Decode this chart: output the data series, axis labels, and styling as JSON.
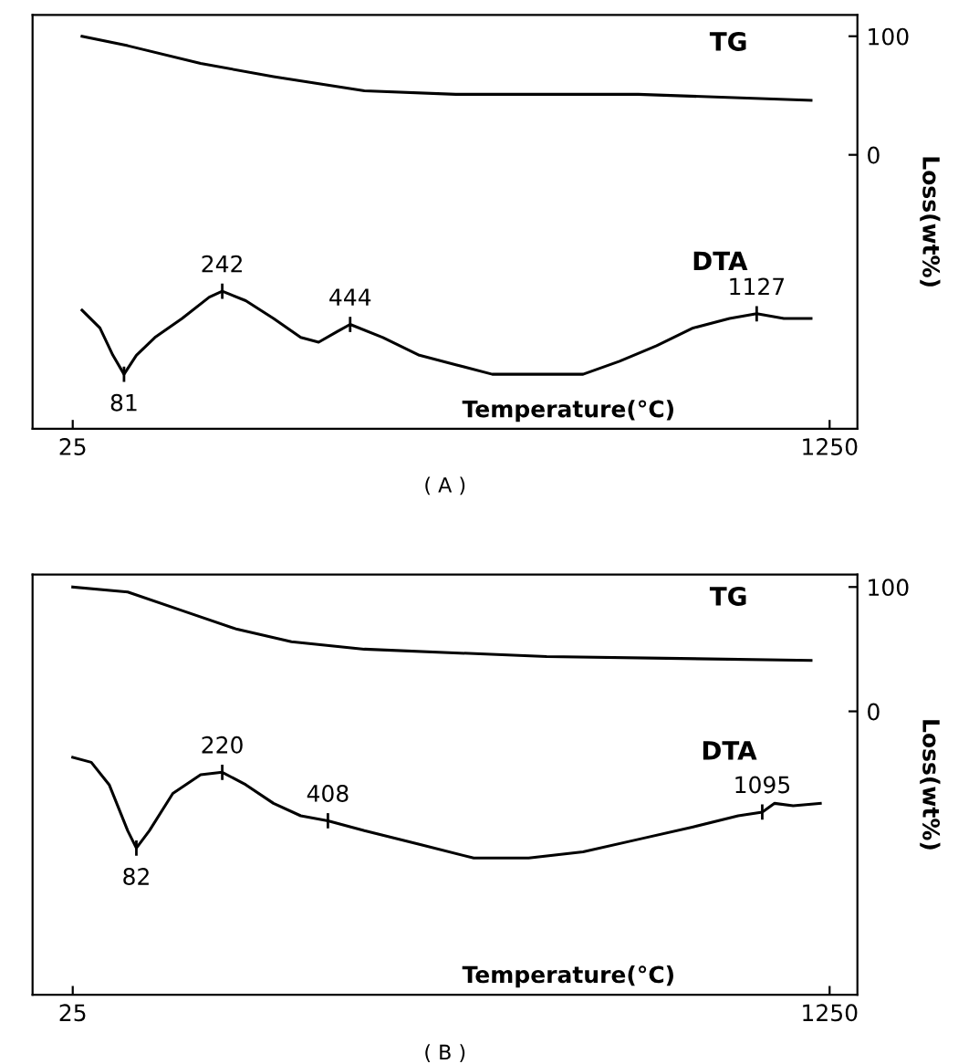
{
  "chart_data": [
    {
      "type": "line",
      "title": "( A )",
      "xlabel": "Temperature(°C)",
      "ylabel": "Loss(wt%)",
      "xlim": [
        -40,
        1295
      ],
      "ylim": [
        -231,
        118
      ],
      "xticks": [
        25,
        1250
      ],
      "yticks": [
        100,
        0
      ],
      "grid": false,
      "legend": false,
      "series": [
        {
          "name": "TG",
          "color": "#000000",
          "x": [
            40,
            114,
            232,
            350,
            497,
            645,
            940,
            1220
          ],
          "values": [
            100,
            92,
            77,
            66,
            54,
            51,
            51,
            46
          ]
        },
        {
          "name": "DTA",
          "color": "#000000",
          "x": [
            40,
            69,
            90,
            108,
            128,
            158,
            202,
            246,
            267,
            305,
            350,
            394,
            423,
            453,
            474,
            527,
            586,
            645,
            704,
            792,
            851,
            910,
            970,
            1029,
            1088,
            1132,
            1176,
            1220
          ],
          "values": [
            -131,
            -146,
            -169,
            -185,
            -169,
            -154,
            -138,
            -120,
            -115,
            -123,
            -138,
            -154,
            -158,
            -149,
            -143,
            -154,
            -169,
            -177,
            -185,
            -185,
            -185,
            -174,
            -161,
            -146,
            -138,
            -134,
            -138,
            -138
          ]
        }
      ],
      "annotations": [
        {
          "text": "81",
          "x": 108,
          "y": -185
        },
        {
          "text": "242",
          "x": 267,
          "y": -115
        },
        {
          "text": "444",
          "x": 474,
          "y": -143
        },
        {
          "text": "1127",
          "x": 1132,
          "y": -134
        }
      ]
    },
    {
      "type": "line",
      "title": "( B )",
      "xlabel": "Temperature(°C)",
      "ylabel": "Loss(wt%)",
      "xlim": [
        -40,
        1295
      ],
      "ylim": [
        -228,
        110
      ],
      "xticks": [
        25,
        1250
      ],
      "yticks": [
        100,
        0
      ],
      "grid": false,
      "legend": false,
      "series": [
        {
          "name": "TG",
          "color": "#000000",
          "x": [
            25,
            114,
            202,
            291,
            379,
            497,
            792,
            1220
          ],
          "values": [
            100,
            96,
            81,
            66,
            56,
            50,
            44,
            41
          ]
        },
        {
          "name": "DTA",
          "color": "#000000",
          "x": [
            25,
            55,
            84,
            114,
            128,
            149,
            187,
            232,
            267,
            305,
            350,
            394,
            438,
            497,
            586,
            674,
            763,
            851,
            940,
            1029,
            1102,
            1141,
            1161,
            1191,
            1235
          ],
          "values": [
            -37,
            -41,
            -59,
            -96,
            -110,
            -96,
            -66,
            -51,
            -49,
            -59,
            -74,
            -84,
            -88,
            -96,
            -107,
            -118,
            -118,
            -113,
            -103,
            -93,
            -84,
            -81,
            -74,
            -76,
            -74
          ]
        }
      ],
      "annotations": [
        {
          "text": "82",
          "x": 128,
          "y": -110
        },
        {
          "text": "220",
          "x": 267,
          "y": -49
        },
        {
          "text": "408",
          "x": 438,
          "y": -88
        },
        {
          "text": "1095",
          "x": 1141,
          "y": -81
        }
      ]
    }
  ]
}
